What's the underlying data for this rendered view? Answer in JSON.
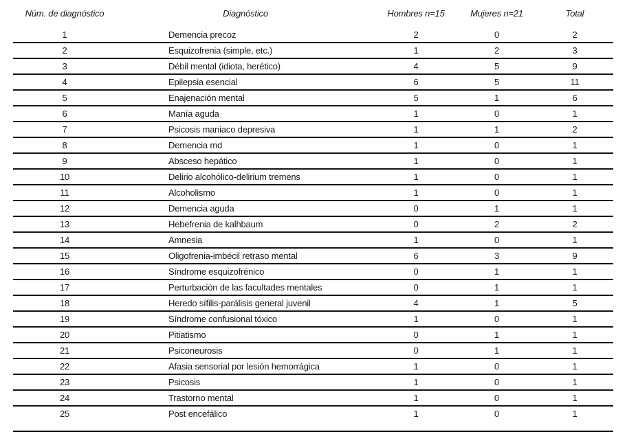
{
  "colors": {
    "background": "#ffffff",
    "text": "#1a1a1a",
    "rule": "#141414"
  },
  "table": {
    "headers": [
      "Núm. de diagnóstico",
      "Diagnóstico",
      "Hombres n=15",
      "Mujeres n=21",
      "Total"
    ],
    "rows": [
      {
        "num": "1",
        "diagnostico": "Demencia precoz",
        "hombres": "2",
        "mujeres": "0",
        "total": "2"
      },
      {
        "num": "2",
        "diagnostico": "Esquizofrenia (simple, etc.)",
        "hombres": "1",
        "mujeres": "2",
        "total": "3"
      },
      {
        "num": "3",
        "diagnostico": "Débil mental (idiota, herético)",
        "hombres": "4",
        "mujeres": "5",
        "total": "9"
      },
      {
        "num": "4",
        "diagnostico": "Epilepsia esencial",
        "hombres": "6",
        "mujeres": "5",
        "total": "11"
      },
      {
        "num": "5",
        "diagnostico": "Enajenación mental",
        "hombres": "5",
        "mujeres": "1",
        "total": "6"
      },
      {
        "num": "6",
        "diagnostico": "Manía aguda",
        "hombres": "1",
        "mujeres": "0",
        "total": "1"
      },
      {
        "num": "7",
        "diagnostico": "Psicosis maniaco depresiva",
        "hombres": "1",
        "mujeres": "1",
        "total": "2"
      },
      {
        "num": "8",
        "diagnostico": "Demencia md",
        "hombres": "1",
        "mujeres": "0",
        "total": "1"
      },
      {
        "num": "9",
        "diagnostico": "Absceso hepático",
        "hombres": "1",
        "mujeres": "0",
        "total": "1"
      },
      {
        "num": "10",
        "diagnostico": "Delirio alcohólico-delirium tremens",
        "hombres": "1",
        "mujeres": "0",
        "total": "1"
      },
      {
        "num": "11",
        "diagnostico": "Alcoholismo",
        "hombres": "1",
        "mujeres": "0",
        "total": "1"
      },
      {
        "num": "12",
        "diagnostico": "Demencia aguda",
        "hombres": "0",
        "mujeres": "1",
        "total": "1"
      },
      {
        "num": "13",
        "diagnostico": "Hebefrenia de kalhbaum",
        "hombres": "0",
        "mujeres": "2",
        "total": "2"
      },
      {
        "num": "14",
        "diagnostico": "Amnesia",
        "hombres": "1",
        "mujeres": "0",
        "total": "1"
      },
      {
        "num": "15",
        "diagnostico": "Oligofrenia-imbécil retraso mental",
        "hombres": "6",
        "mujeres": "3",
        "total": "9"
      },
      {
        "num": "16",
        "diagnostico": "Síndrome esquizofrénico",
        "hombres": "0",
        "mujeres": "1",
        "total": "1"
      },
      {
        "num": "17",
        "diagnostico": "Perturbación de las facultades mentales",
        "hombres": "0",
        "mujeres": "1",
        "total": "1"
      },
      {
        "num": "18",
        "diagnostico": "Heredo sífilis-parálisis general juvenil",
        "hombres": "4",
        "mujeres": "1",
        "total": "5"
      },
      {
        "num": "19",
        "diagnostico": "Síndrome confusional tóxico",
        "hombres": "1",
        "mujeres": "0",
        "total": "1"
      },
      {
        "num": "20",
        "diagnostico": "Pitiatismo",
        "hombres": "0",
        "mujeres": "1",
        "total": "1"
      },
      {
        "num": "21",
        "diagnostico": "Psiconeurosis",
        "hombres": "0",
        "mujeres": "1",
        "total": "1"
      },
      {
        "num": "22",
        "diagnostico": "Afasia sensorial por lesión hemorrágica",
        "hombres": "1",
        "mujeres": "0",
        "total": "1"
      },
      {
        "num": "23",
        "diagnostico": "Psicosis",
        "hombres": "1",
        "mujeres": "0",
        "total": "1"
      },
      {
        "num": "24",
        "diagnostico": "Trastorno mental",
        "hombres": "1",
        "mujeres": "0",
        "total": "1"
      },
      {
        "num": "25",
        "diagnostico": "Post encefálico",
        "hombres": "1",
        "mujeres": "0",
        "total": "1"
      }
    ]
  }
}
